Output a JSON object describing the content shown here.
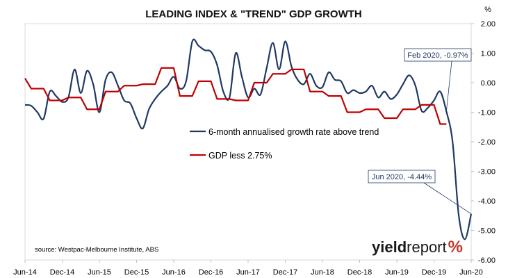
{
  "chart_data": {
    "type": "line",
    "title": "LEADING INDEX & \"TREND\" GDP GROWTH",
    "y_unit": "%",
    "ylim": [
      -6.0,
      2.0
    ],
    "y_ticks": [
      "2.00",
      "1.00",
      "0.00",
      "-1.00",
      "-2.00",
      "-3.00",
      "-4.00",
      "-5.00",
      "-6.00"
    ],
    "x_ticks": [
      "Jun-14",
      "Dec-14",
      "Jun-15",
      "Dec-15",
      "Jun-16",
      "Dec-16",
      "Jun-17",
      "Dec-17",
      "Jun-18",
      "Dec-18",
      "Jun-19",
      "Dec-19",
      "Jun-20"
    ],
    "x_start": "2014-06",
    "grid": false,
    "series": [
      {
        "name": "6-month annualised growth rate above trend",
        "color": "#1f3864",
        "points": [
          [
            "2014-06",
            -0.75
          ],
          [
            "2014-07",
            -0.78
          ],
          [
            "2014-08",
            -1.0
          ],
          [
            "2014-09",
            -1.22
          ],
          [
            "2014-10",
            -0.3
          ],
          [
            "2014-11",
            -0.45
          ],
          [
            "2014-12",
            -0.65
          ],
          [
            "2015-01",
            -0.5
          ],
          [
            "2015-02",
            0.45
          ],
          [
            "2015-03",
            -0.35
          ],
          [
            "2015-04",
            0.4
          ],
          [
            "2015-05",
            -0.05
          ],
          [
            "2015-06",
            -1.0
          ],
          [
            "2015-07",
            0.1
          ],
          [
            "2015-08",
            0.35
          ],
          [
            "2015-09",
            -0.1
          ],
          [
            "2015-10",
            -0.6
          ],
          [
            "2015-11",
            -0.7
          ],
          [
            "2015-12",
            -1.2
          ],
          [
            "2016-01",
            -1.55
          ],
          [
            "2016-02",
            -0.9
          ],
          [
            "2016-03",
            -0.55
          ],
          [
            "2016-04",
            -0.3
          ],
          [
            "2016-05",
            -0.1
          ],
          [
            "2016-06",
            0.2
          ],
          [
            "2016-07",
            -0.2
          ],
          [
            "2016-08",
            0.05
          ],
          [
            "2016-09",
            1.4
          ],
          [
            "2016-10",
            1.25
          ],
          [
            "2016-11",
            1.1
          ],
          [
            "2016-12",
            1.05
          ],
          [
            "2017-01",
            0.6
          ],
          [
            "2017-02",
            -0.3
          ],
          [
            "2017-03",
            -0.5
          ],
          [
            "2017-04",
            1.0
          ],
          [
            "2017-05",
            0.2
          ],
          [
            "2017-06",
            -0.5
          ],
          [
            "2017-07",
            -0.2
          ],
          [
            "2017-08",
            -0.4
          ],
          [
            "2017-09",
            0.5
          ],
          [
            "2017-10",
            1.35
          ],
          [
            "2017-11",
            0.45
          ],
          [
            "2017-12",
            1.4
          ],
          [
            "2018-01",
            0.55
          ],
          [
            "2018-02",
            0.1
          ],
          [
            "2018-03",
            -0.05
          ],
          [
            "2018-04",
            0.3
          ],
          [
            "2018-05",
            -0.1
          ],
          [
            "2018-06",
            -0.15
          ],
          [
            "2018-07",
            0.35
          ],
          [
            "2018-08",
            0.1
          ],
          [
            "2018-09",
            0.05
          ],
          [
            "2018-10",
            -0.35
          ],
          [
            "2018-11",
            -0.25
          ],
          [
            "2018-12",
            -0.35
          ],
          [
            "2018-13",
            -0.3
          ],
          [
            "2019-02",
            -0.1
          ],
          [
            "2019-03",
            -0.5
          ],
          [
            "2019-04",
            -0.3
          ],
          [
            "2019-05",
            -0.55
          ],
          [
            "2019-06",
            -0.4
          ],
          [
            "2019-07",
            -0.05
          ],
          [
            "2019-08",
            0.25
          ],
          [
            "2019-09",
            -0.1
          ],
          [
            "2019-10",
            -0.95
          ],
          [
            "2019-11",
            -0.85
          ],
          [
            "2019-12",
            -0.6
          ],
          [
            "2020-01",
            -0.3
          ],
          [
            "2020-02",
            -0.97
          ],
          [
            "2020-03",
            -2.0
          ],
          [
            "2020-04",
            -4.5
          ],
          [
            "2020-05",
            -5.3
          ],
          [
            "2020-06",
            -4.44
          ]
        ]
      },
      {
        "name": "GDP less 2.75%",
        "color": "#c00000",
        "points": [
          [
            "2014-06",
            0.15
          ],
          [
            "2014-07",
            -0.2
          ],
          [
            "2014-09",
            -0.2
          ],
          [
            "2014-10",
            -0.6
          ],
          [
            "2014-12",
            -0.6
          ],
          [
            "2015-01",
            -0.5
          ],
          [
            "2015-03",
            -0.5
          ],
          [
            "2015-04",
            -0.9
          ],
          [
            "2015-06",
            -0.9
          ],
          [
            "2015-07",
            -0.3
          ],
          [
            "2015-09",
            -0.3
          ],
          [
            "2015-10",
            -0.1
          ],
          [
            "2015-12",
            -0.1
          ],
          [
            "2016-01",
            -0.05
          ],
          [
            "2016-03",
            -0.05
          ],
          [
            "2016-04",
            0.5
          ],
          [
            "2016-06",
            0.5
          ],
          [
            "2016-07",
            -0.45
          ],
          [
            "2016-09",
            -0.45
          ],
          [
            "2016-10",
            0.05
          ],
          [
            "2016-12",
            0.05
          ],
          [
            "2017-01",
            -0.55
          ],
          [
            "2017-03",
            -0.55
          ],
          [
            "2017-04",
            -0.6
          ],
          [
            "2017-06",
            -0.6
          ],
          [
            "2017-07",
            0.0
          ],
          [
            "2017-09",
            0.0
          ],
          [
            "2017-10",
            0.3
          ],
          [
            "2017-12",
            0.3
          ],
          [
            "2018-01",
            0.45
          ],
          [
            "2018-03",
            0.45
          ],
          [
            "2018-04",
            -0.3
          ],
          [
            "2018-06",
            -0.3
          ],
          [
            "2018-07",
            -0.45
          ],
          [
            "2018-09",
            -0.45
          ],
          [
            "2018-10",
            -1.0
          ],
          [
            "2018-12",
            -1.0
          ],
          [
            "2019-01",
            -0.9
          ],
          [
            "2019-03",
            -0.9
          ],
          [
            "2019-04",
            -1.2
          ],
          [
            "2019-06",
            -1.2
          ],
          [
            "2019-07",
            -0.9
          ],
          [
            "2019-09",
            -0.9
          ],
          [
            "2019-10",
            -0.75
          ],
          [
            "2019-12",
            -0.75
          ],
          [
            "2020-01",
            -1.4
          ],
          [
            "2020-02",
            -1.4
          ]
        ]
      }
    ],
    "annotations": [
      {
        "text": "Feb 2020, -0.97%",
        "x": "2020-02",
        "y": -0.97
      },
      {
        "text": "Jun 2020, -4.44%",
        "x": "2020-06",
        "y": -4.44
      }
    ],
    "legend": [
      {
        "label": "6-month annualised growth rate above trend",
        "color": "#1f3864"
      },
      {
        "label": "GDP less 2.75%",
        "color": "#c00000"
      }
    ]
  },
  "source": "source: Westpac-Melbourne Institute, ABS",
  "brand": {
    "part1": "yield",
    "part2": "report",
    "part3": "%"
  }
}
